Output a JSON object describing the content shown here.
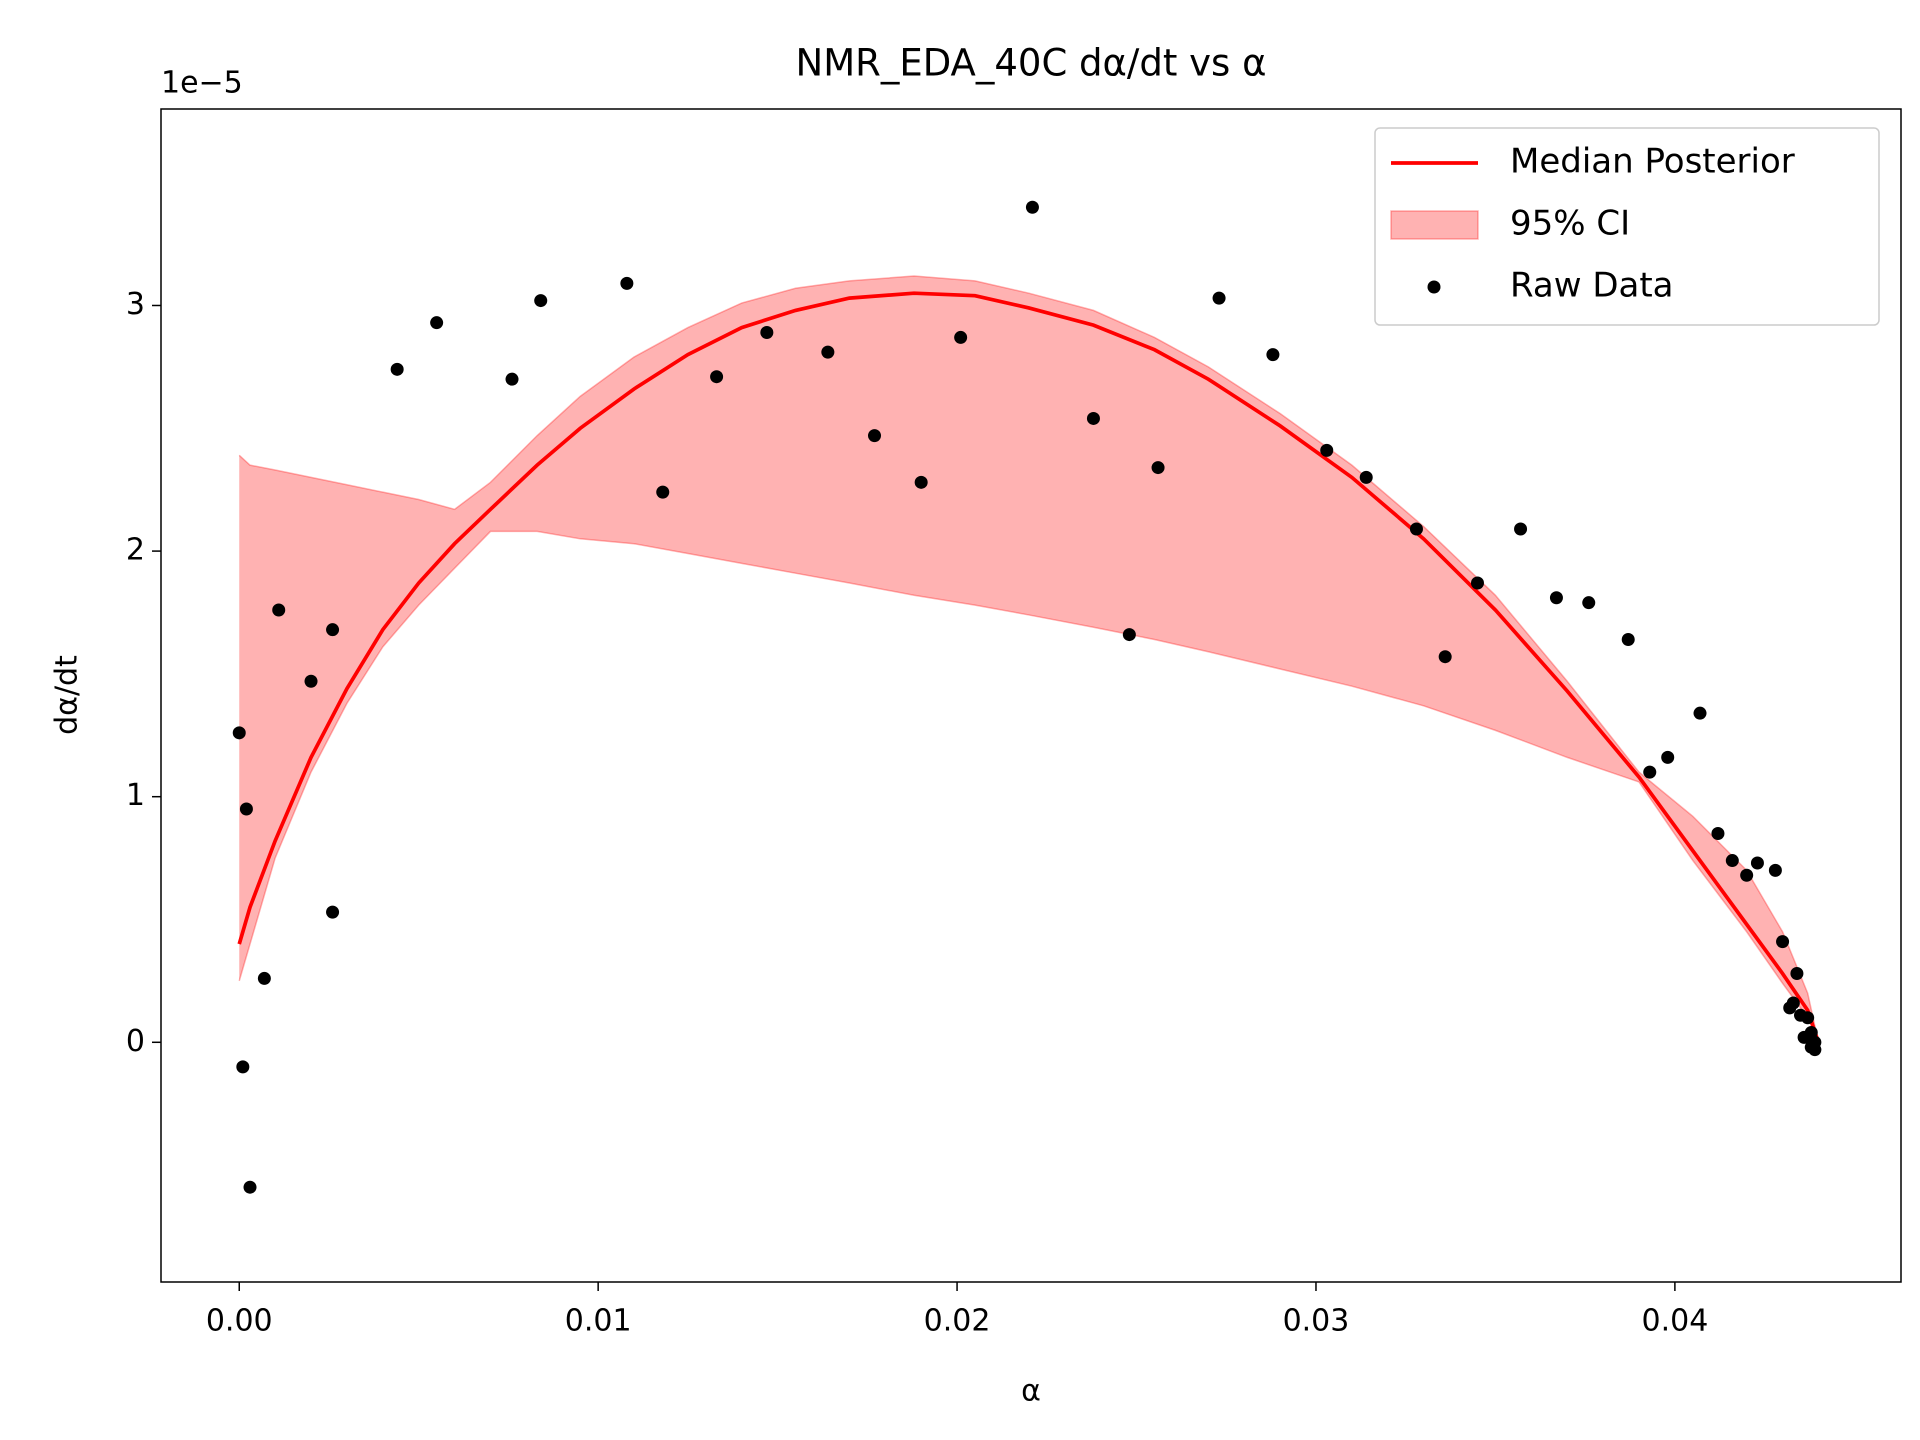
{
  "chart_data": {
    "type": "line",
    "title": "NMR_EDA_40C dα/dt vs α",
    "x_label": "α",
    "y_label": "dα/dt",
    "y_offset_label": "1e−5",
    "xlim": [
      -0.00218,
      0.0463
    ],
    "ylim": [
      -0.976,
      3.8
    ],
    "xticks": [
      {
        "value": 0,
        "label": "0.00"
      },
      0.01,
      0.02,
      0.03,
      0.04
    ],
    "yticks": [
      0,
      1,
      2,
      3
    ],
    "legend": "upper right",
    "x": [
      0,
      0.0003,
      0.001,
      0.002,
      0.003,
      0.004,
      0.005,
      0.006,
      0.007,
      0.0083,
      0.0095,
      0.011,
      0.0125,
      0.014,
      0.0155,
      0.017,
      0.0188,
      0.0205,
      0.022,
      0.0238,
      0.0255,
      0.027,
      0.029,
      0.031,
      0.033,
      0.035,
      0.037,
      0.039,
      0.0405,
      0.042,
      0.043,
      0.0437,
      0.044
    ],
    "series": [
      {
        "name": "Median Posterior",
        "kind": "line",
        "color": "#ff0000",
        "values": [
          0.4,
          0.55,
          0.82,
          1.16,
          1.44,
          1.68,
          1.87,
          2.03,
          2.17,
          2.35,
          2.5,
          2.66,
          2.8,
          2.91,
          2.98,
          3.03,
          3.05,
          3.04,
          2.99,
          2.92,
          2.82,
          2.7,
          2.51,
          2.3,
          2.05,
          1.76,
          1.43,
          1.08,
          0.78,
          0.48,
          0.28,
          0.13,
          0.0
        ]
      },
      {
        "name": "95% CI",
        "kind": "band",
        "color": "#ff0000",
        "upper": [
          2.39,
          2.35,
          2.33,
          2.3,
          2.27,
          2.24,
          2.21,
          2.17,
          2.28,
          2.47,
          2.63,
          2.79,
          2.91,
          3.01,
          3.07,
          3.1,
          3.12,
          3.1,
          3.05,
          2.98,
          2.87,
          2.75,
          2.56,
          2.35,
          2.1,
          1.82,
          1.47,
          1.1,
          0.92,
          0.7,
          0.45,
          0.2,
          0.0
        ],
        "lower": [
          0.25,
          0.4,
          0.75,
          1.1,
          1.38,
          1.61,
          1.78,
          1.93,
          2.08,
          2.08,
          2.05,
          2.03,
          1.99,
          1.95,
          1.91,
          1.87,
          1.82,
          1.78,
          1.74,
          1.69,
          1.64,
          1.59,
          1.52,
          1.45,
          1.37,
          1.27,
          1.16,
          1.06,
          0.74,
          0.45,
          0.24,
          0.1,
          0.0
        ]
      },
      {
        "name": "Raw Data",
        "kind": "points",
        "color": "#000000",
        "x": [
          0,
          0.0001,
          0.0002,
          0.0003,
          0.0007,
          0.0011,
          0.002,
          0.0026,
          0.0026,
          0.0044,
          0.0055,
          0.0076,
          0.0084,
          0.0108,
          0.0118,
          0.0133,
          0.0147,
          0.0164,
          0.0177,
          0.019,
          0.0201,
          0.0221,
          0.0238,
          0.0248,
          0.0256,
          0.0273,
          0.0288,
          0.0303,
          0.0314,
          0.0328,
          0.0336,
          0.0345,
          0.0357,
          0.0367,
          0.0376,
          0.0387,
          0.0393,
          0.0398,
          0.0407,
          0.0412,
          0.0416,
          0.042,
          0.0423,
          0.0428,
          0.043,
          0.0434,
          0.0432,
          0.0433,
          0.0435,
          0.0437,
          0.0436,
          0.0438,
          0.0439,
          0.0438,
          0.0439
        ],
        "values": [
          1.26,
          -0.1,
          0.95,
          -0.59,
          0.26,
          1.76,
          1.47,
          1.68,
          0.53,
          2.74,
          2.93,
          2.7,
          3.02,
          3.09,
          2.24,
          2.71,
          2.89,
          2.81,
          2.47,
          2.28,
          2.87,
          3.4,
          2.54,
          1.66,
          2.34,
          3.03,
          2.8,
          2.41,
          2.3,
          2.09,
          1.57,
          1.87,
          2.09,
          1.81,
          1.79,
          1.64,
          1.1,
          1.16,
          1.34,
          0.85,
          0.74,
          0.68,
          0.73,
          0.7,
          0.41,
          0.28,
          0.14,
          0.16,
          0.11,
          0.1,
          0.02,
          0.04,
          0.0,
          -0.02,
          -0.03
        ]
      }
    ]
  }
}
